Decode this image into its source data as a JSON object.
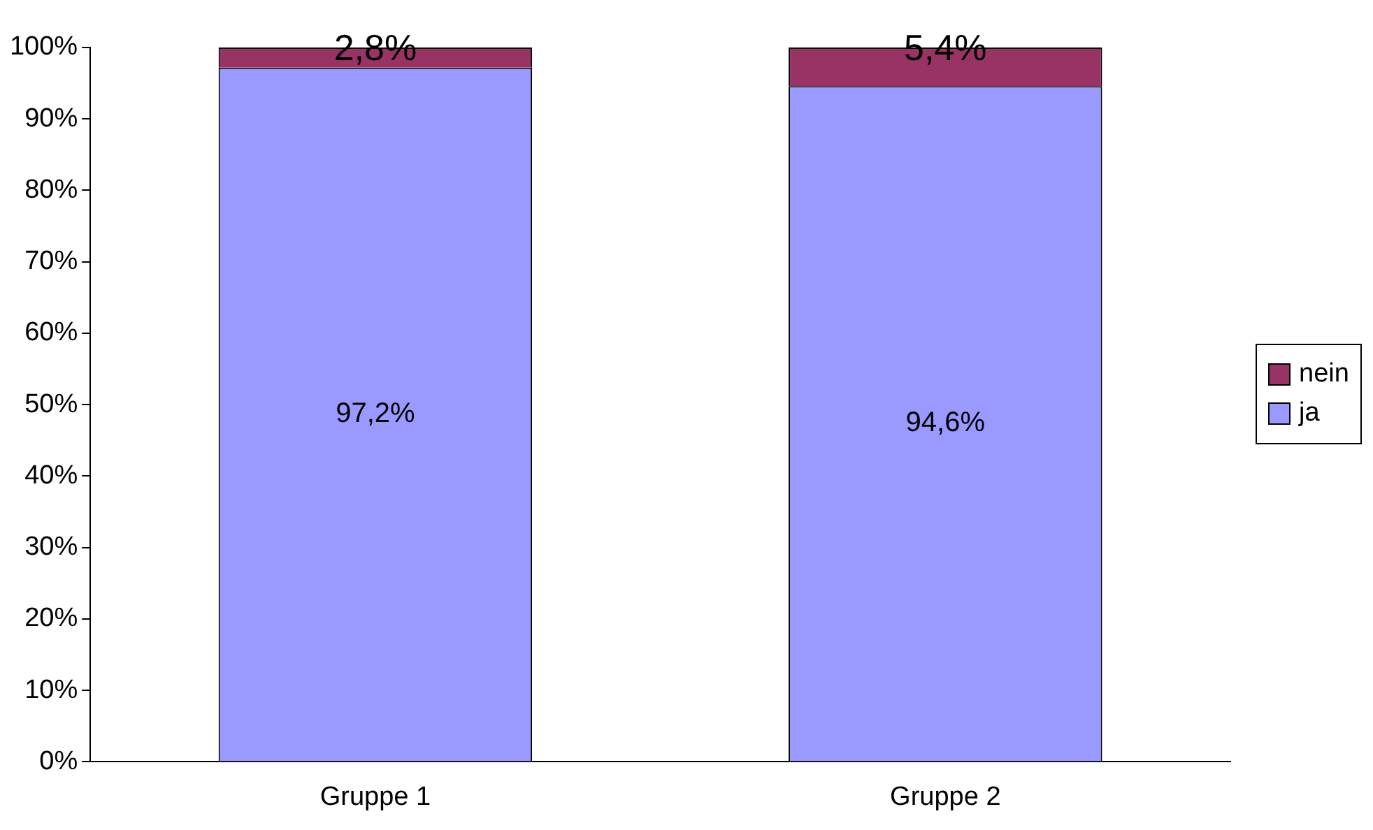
{
  "chart_data": {
    "type": "bar",
    "stacked": true,
    "categories": [
      "Gruppe 1",
      "Gruppe 2"
    ],
    "series": [
      {
        "name": "ja",
        "color": "#9999ff",
        "values": [
          97.2,
          94.6
        ],
        "value_labels": [
          "97,2%",
          "94,6%"
        ]
      },
      {
        "name": "nein",
        "color": "#993366",
        "values": [
          2.8,
          5.4
        ],
        "value_labels": [
          "2,8%",
          "5,4%"
        ]
      }
    ],
    "ylim": [
      0,
      100
    ],
    "yticks": [
      {
        "value": 0,
        "label": "0%"
      },
      {
        "value": 10,
        "label": "10%"
      },
      {
        "value": 20,
        "label": "20%"
      },
      {
        "value": 30,
        "label": "30%"
      },
      {
        "value": 40,
        "label": "40%"
      },
      {
        "value": 50,
        "label": "50%"
      },
      {
        "value": 60,
        "label": "60%"
      },
      {
        "value": 70,
        "label": "70%"
      },
      {
        "value": 80,
        "label": "80%"
      },
      {
        "value": 90,
        "label": "90%"
      },
      {
        "value": 100,
        "label": "100%"
      }
    ],
    "grid": false,
    "legend": "right"
  }
}
